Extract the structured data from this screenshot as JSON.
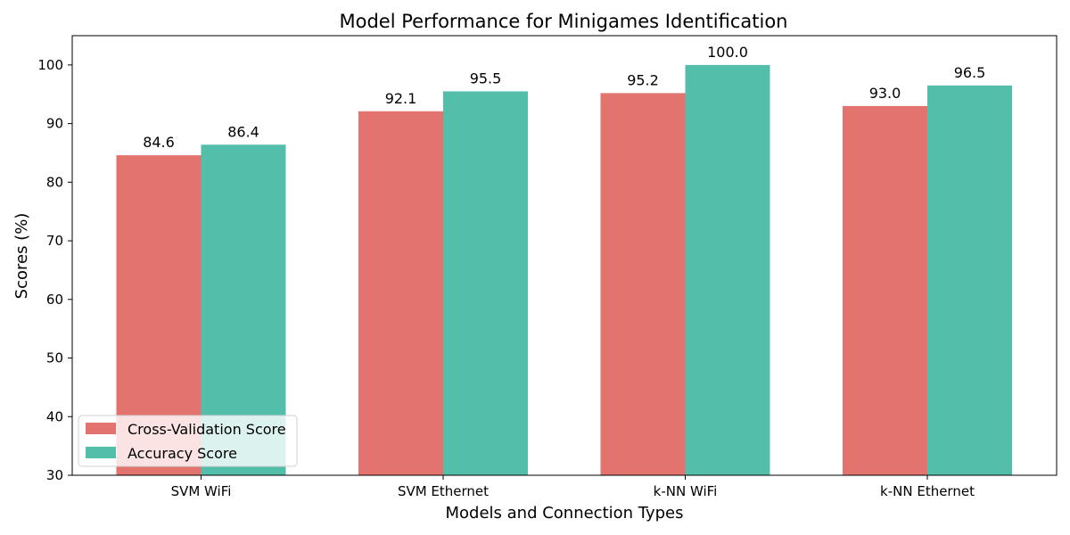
{
  "chart_data": {
    "type": "bar",
    "title": "Model Performance for Minigames Identification",
    "xlabel": "Models and Connection Types",
    "ylabel": "Scores (%)",
    "categories": [
      "SVM WiFi",
      "SVM Ethernet",
      "k-NN WiFi",
      "k-NN Ethernet"
    ],
    "series": [
      {
        "name": "Cross-Validation Score",
        "values": [
          84.6,
          92.1,
          95.2,
          93.0
        ],
        "labels": [
          "84.6",
          "92.1",
          "95.2",
          "93.0"
        ],
        "color": "#e3736e"
      },
      {
        "name": "Accuracy Score",
        "values": [
          86.4,
          95.5,
          100.0,
          96.5
        ],
        "labels": [
          "86.4",
          "95.5",
          "100.0",
          "96.5"
        ],
        "color": "#53bfaa"
      }
    ],
    "ylim": [
      30,
      105
    ],
    "yticks": [
      "30",
      "40",
      "50",
      "60",
      "70",
      "80",
      "90",
      "100"
    ],
    "grid": false,
    "legend_position": "lower-left"
  }
}
